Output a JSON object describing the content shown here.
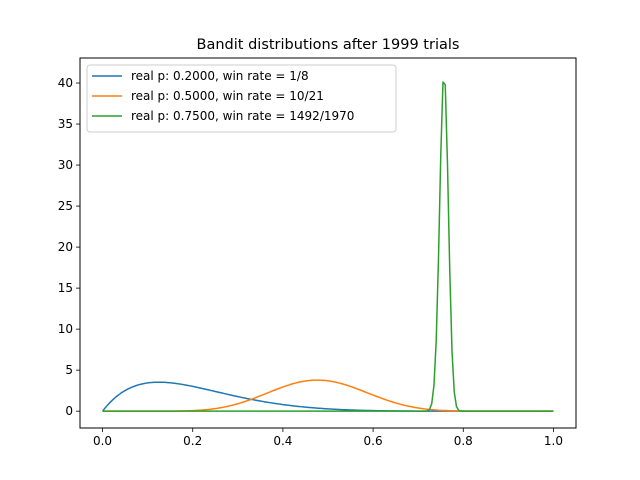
{
  "chart_data": {
    "type": "line",
    "title": "Bandit distributions after 1999 trials",
    "xlabel": "",
    "ylabel": "",
    "xlim": [
      -0.05,
      1.05
    ],
    "ylim": [
      -2.05,
      43.05
    ],
    "x_ticks": [
      0.0,
      0.2,
      0.4,
      0.6,
      0.8,
      1.0
    ],
    "x_tick_labels": [
      "0.0",
      "0.2",
      "0.4",
      "0.6",
      "0.8",
      "1.0"
    ],
    "y_ticks": [
      0,
      5,
      10,
      15,
      20,
      25,
      30,
      35,
      40
    ],
    "y_tick_labels": [
      "0",
      "5",
      "10",
      "15",
      "20",
      "25",
      "30",
      "35",
      "40"
    ],
    "grid": false,
    "legend_position": "top-left",
    "series": [
      {
        "name": "real p: 0.2000, win rate = 1/8",
        "color": "#1f77b4",
        "distribution": "beta",
        "alpha": 2,
        "beta": 8
      },
      {
        "name": "real p: 0.5000, win rate = 10/21",
        "color": "#ff7f0e",
        "distribution": "beta",
        "alpha": 11,
        "beta": 12
      },
      {
        "name": "real p: 0.7500, win rate = 1492/1970",
        "color": "#2ca02c",
        "distribution": "beta",
        "alpha": 1493,
        "beta": 479
      }
    ]
  }
}
